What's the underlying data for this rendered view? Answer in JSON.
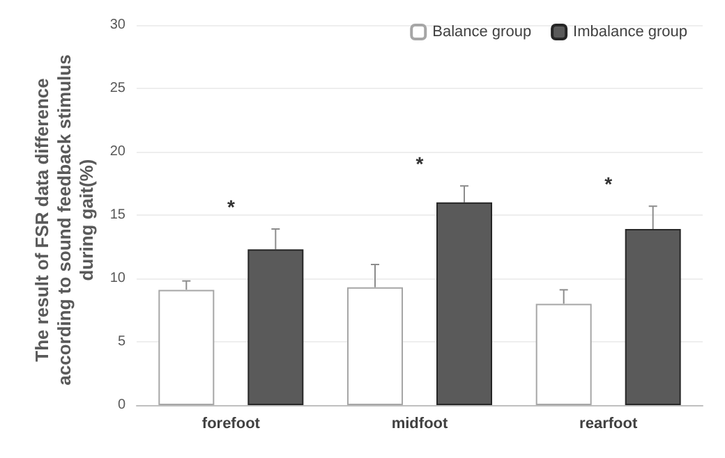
{
  "chart_data": {
    "type": "bar",
    "ylabel": "The result of FSR data difference according to sound feedback stimulus during gait(%)",
    "categories": [
      "forefoot",
      "midfoot",
      "rearfoot"
    ],
    "series": [
      {
        "name": "Balance group",
        "color": "#ffffff",
        "values": [
          9.1,
          9.3,
          8.0
        ],
        "errors": [
          0.7,
          1.8,
          1.1
        ]
      },
      {
        "name": "Imbalance group",
        "color": "#5a5a5a",
        "values": [
          12.3,
          16.0,
          13.9
        ],
        "errors": [
          1.6,
          1.3,
          1.8
        ]
      }
    ],
    "ylim": [
      0,
      30
    ],
    "yticks": [
      0,
      5,
      10,
      15,
      20,
      25,
      30
    ],
    "grid": "y",
    "legend": "top right",
    "annotations": [
      "*",
      "*",
      "*"
    ]
  }
}
